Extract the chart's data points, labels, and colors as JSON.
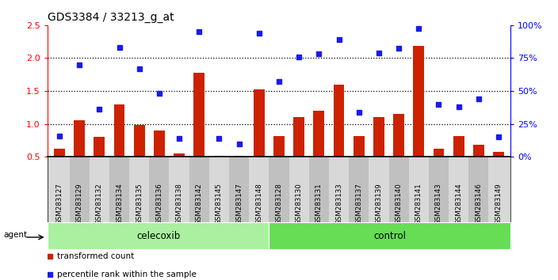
{
  "title": "GDS3384 / 33213_g_at",
  "samples": [
    "GSM283127",
    "GSM283129",
    "GSM283132",
    "GSM283134",
    "GSM283135",
    "GSM283136",
    "GSM283138",
    "GSM283142",
    "GSM283145",
    "GSM283147",
    "GSM283148",
    "GSM283128",
    "GSM283130",
    "GSM283131",
    "GSM283133",
    "GSM283137",
    "GSM283139",
    "GSM283140",
    "GSM283141",
    "GSM283143",
    "GSM283144",
    "GSM283146",
    "GSM283149"
  ],
  "transformed_count": [
    0.62,
    1.05,
    0.8,
    1.3,
    0.98,
    0.9,
    0.55,
    1.78,
    0.52,
    0.52,
    1.52,
    0.82,
    1.1,
    1.2,
    1.6,
    0.82,
    1.1,
    1.15,
    2.18,
    0.62,
    0.82,
    0.68,
    0.58
  ],
  "percentile_rank": [
    0.82,
    1.9,
    1.22,
    2.16,
    1.84,
    1.46,
    0.78,
    2.4,
    0.78,
    0.7,
    2.38,
    1.65,
    2.02,
    2.06,
    2.28,
    1.18,
    2.08,
    2.15,
    2.45,
    1.3,
    1.26,
    1.38,
    0.8
  ],
  "celecoxib_count": 11,
  "control_count": 12,
  "ylim_left": [
    0.5,
    2.5
  ],
  "bar_color": "#cc2200",
  "dot_color": "#1a1aee",
  "celecoxib_color": "#aaf0a0",
  "control_color": "#66dd55",
  "tick_bg_light": "#d8d8d8",
  "tick_bg_dark": "#c0c0c0",
  "agent_label": "agent",
  "celecoxib_label": "celecoxib",
  "control_label": "control",
  "legend_bar": "transformed count",
  "legend_dot": "percentile rank within the sample",
  "dotted_lines": [
    1.0,
    1.5,
    2.0
  ],
  "right_yticks": [
    0,
    25,
    50,
    75,
    100
  ],
  "right_yticklabels": [
    "0%",
    "25%",
    "50%",
    "75%",
    "100%"
  ]
}
